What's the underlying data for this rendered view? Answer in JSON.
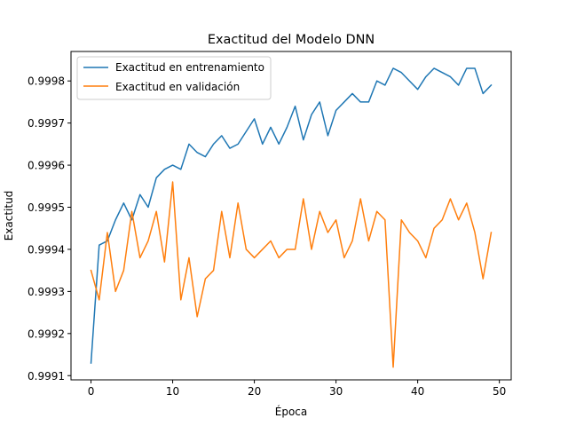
{
  "chart_data": {
    "type": "line",
    "title": "Exactitud del Modelo DNN",
    "xlabel": "Época",
    "ylabel": "Exactitud",
    "xlim": [
      -2.45,
      51.45
    ],
    "ylim": [
      0.99909,
      0.99987
    ],
    "xticks": [
      0,
      10,
      20,
      30,
      40,
      50
    ],
    "xtick_labels": [
      "0",
      "10",
      "20",
      "30",
      "40",
      "50"
    ],
    "yticks": [
      0.9991,
      0.9992,
      0.9993,
      0.9994,
      0.9995,
      0.9996,
      0.9997,
      0.9998
    ],
    "ytick_labels": [
      "0.9991",
      "0.9992",
      "0.9993",
      "0.9994",
      "0.9995",
      "0.9996",
      "0.9997",
      "0.9998"
    ],
    "grid": false,
    "legend_position": "top-left",
    "x": [
      0,
      1,
      2,
      3,
      4,
      5,
      6,
      7,
      8,
      9,
      10,
      11,
      12,
      13,
      14,
      15,
      16,
      17,
      18,
      19,
      20,
      21,
      22,
      23,
      24,
      25,
      26,
      27,
      28,
      29,
      30,
      31,
      32,
      33,
      34,
      35,
      36,
      37,
      38,
      39,
      40,
      41,
      42,
      43,
      44,
      45,
      46,
      47,
      48,
      49
    ],
    "series": [
      {
        "name": "Exactitud en entrenamiento",
        "color": "#1f77b4",
        "values": [
          0.99913,
          0.99941,
          0.99942,
          0.99947,
          0.99951,
          0.99947,
          0.99953,
          0.9995,
          0.99957,
          0.99959,
          0.9996,
          0.99959,
          0.99965,
          0.99963,
          0.99962,
          0.99965,
          0.99967,
          0.99964,
          0.99965,
          0.99968,
          0.99971,
          0.99965,
          0.99969,
          0.99965,
          0.99969,
          0.99974,
          0.99966,
          0.99972,
          0.99975,
          0.99967,
          0.99973,
          0.99975,
          0.99977,
          0.99975,
          0.99975,
          0.9998,
          0.99979,
          0.99983,
          0.99982,
          0.9998,
          0.99978,
          0.99981,
          0.99983,
          0.99982,
          0.99981,
          0.99979,
          0.99983,
          0.99983,
          0.99977,
          0.99979
        ]
      },
      {
        "name": "Exactitud en validación",
        "color": "#ff7f0e",
        "values": [
          0.99935,
          0.99928,
          0.99944,
          0.9993,
          0.99935,
          0.99949,
          0.99938,
          0.99942,
          0.99949,
          0.99937,
          0.99956,
          0.99928,
          0.99938,
          0.99924,
          0.99933,
          0.99935,
          0.99949,
          0.99938,
          0.99951,
          0.9994,
          0.99938,
          0.9994,
          0.99942,
          0.99938,
          0.9994,
          0.9994,
          0.99952,
          0.9994,
          0.99949,
          0.99944,
          0.99947,
          0.99938,
          0.99942,
          0.99952,
          0.99942,
          0.99949,
          0.99947,
          0.99912,
          0.99947,
          0.99944,
          0.99942,
          0.99938,
          0.99945,
          0.99947,
          0.99952,
          0.99947,
          0.99951,
          0.99944,
          0.99933,
          0.99944
        ]
      }
    ]
  }
}
